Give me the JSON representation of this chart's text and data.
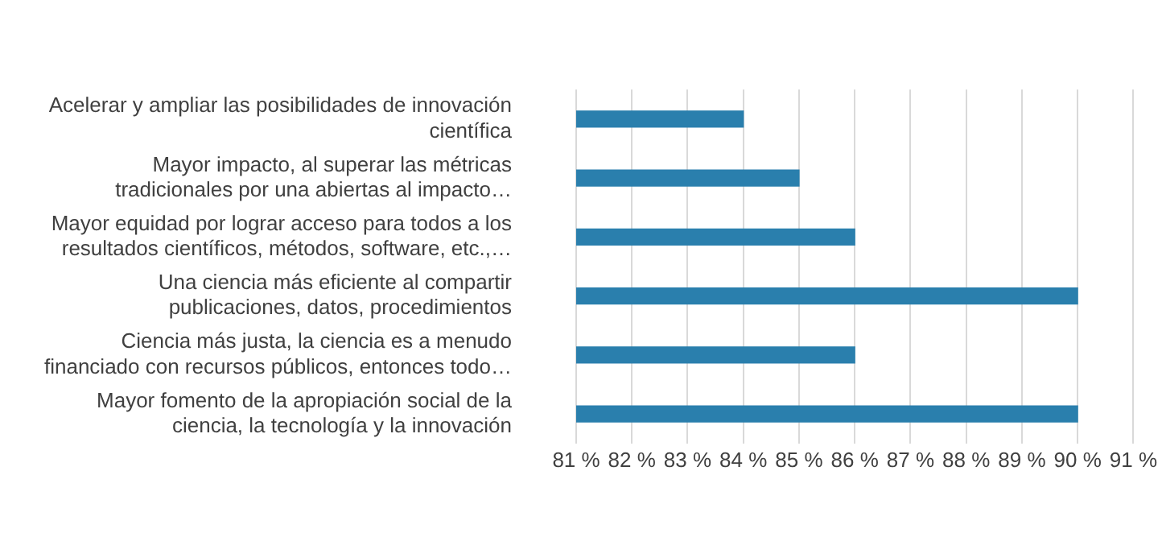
{
  "chart_data": {
    "type": "bar",
    "orientation": "horizontal",
    "categories": [
      "Acelerar y ampliar las posibilidades de innovación\ncientífica",
      "Mayor impacto, al superar las métricas\ntradicionales por una abiertas al impacto…",
      "Mayor equidad por lograr acceso para todos a los\nresultados científicos, métodos, software, etc.,…",
      "Una ciencia más eficiente al compartir\npublicaciones, datos, procedimientos",
      "Ciencia más justa, la ciencia es a menudo\nfinanciado con recursos públicos, entonces todo…",
      "Mayor fomento de la apropiación social de la\nciencia, la tecnología y la innovación"
    ],
    "values": [
      84,
      85,
      86,
      90,
      86,
      90
    ],
    "color": "#2a7fad",
    "xlim": [
      81,
      91
    ],
    "xticks": [
      {
        "value": 81,
        "label": "81 %"
      },
      {
        "value": 82,
        "label": "82 %"
      },
      {
        "value": 83,
        "label": "83 %"
      },
      {
        "value": 84,
        "label": "84 %"
      },
      {
        "value": 85,
        "label": "85 %"
      },
      {
        "value": 86,
        "label": "86 %"
      },
      {
        "value": 87,
        "label": "87 %"
      },
      {
        "value": 88,
        "label": "88 %"
      },
      {
        "value": 89,
        "label": "89 %"
      },
      {
        "value": 90,
        "label": "90 %"
      },
      {
        "value": 91,
        "label": "91 %"
      }
    ],
    "grid": "x",
    "legend": false
  }
}
